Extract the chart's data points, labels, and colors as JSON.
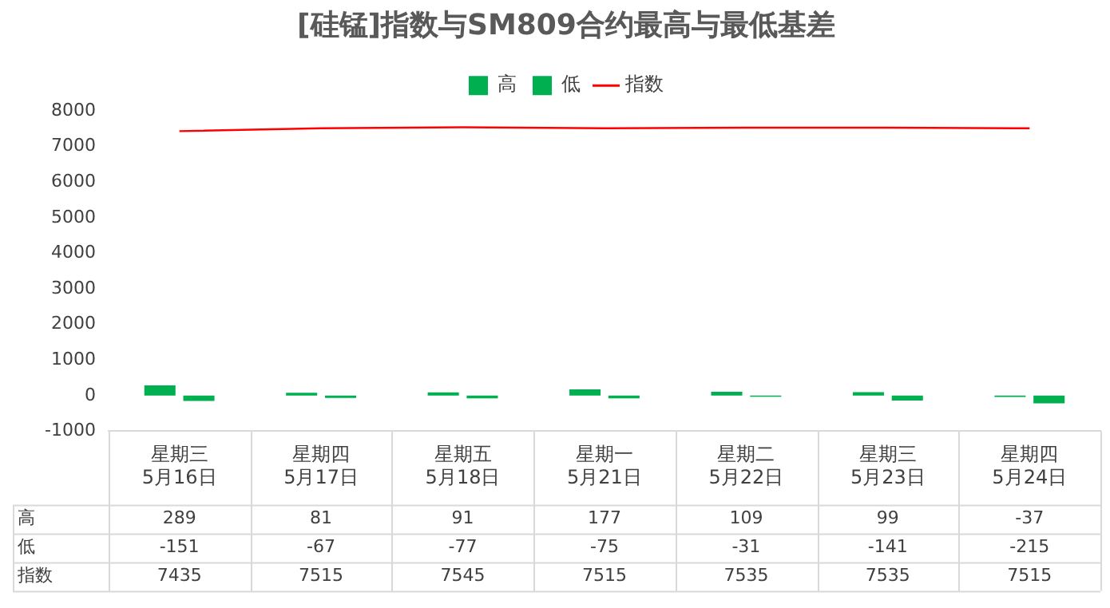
{
  "chart_data": {
    "type": "bar",
    "title": "[硅锰]指数与SM809合约最高与最低基差",
    "categories": [
      "星期三\n5月16日",
      "星期四\n5月17日",
      "星期五\n5月18日",
      "星期一\n5月21日",
      "星期二\n5月22日",
      "星期三\n5月23日",
      "星期四\n5月24日"
    ],
    "series": [
      {
        "name": "高",
        "color": "#00b050",
        "values": [
          289,
          81,
          91,
          177,
          109,
          99,
          -37
        ]
      },
      {
        "name": "低",
        "color": "#00b050",
        "values": [
          -151,
          -67,
          -77,
          -75,
          -31,
          -141,
          -215
        ]
      },
      {
        "name": "指数",
        "type": "line",
        "color": "#ff0000",
        "values": [
          7435,
          7515,
          7545,
          7515,
          7535,
          7535,
          7515
        ]
      }
    ],
    "ylim": [
      -1000,
      8000
    ],
    "yticks": [
      -1000,
      0,
      1000,
      2000,
      3000,
      4000,
      5000,
      6000,
      7000,
      8000
    ],
    "grid": false,
    "legend": "top",
    "marker": "none",
    "data_labels": true
  }
}
